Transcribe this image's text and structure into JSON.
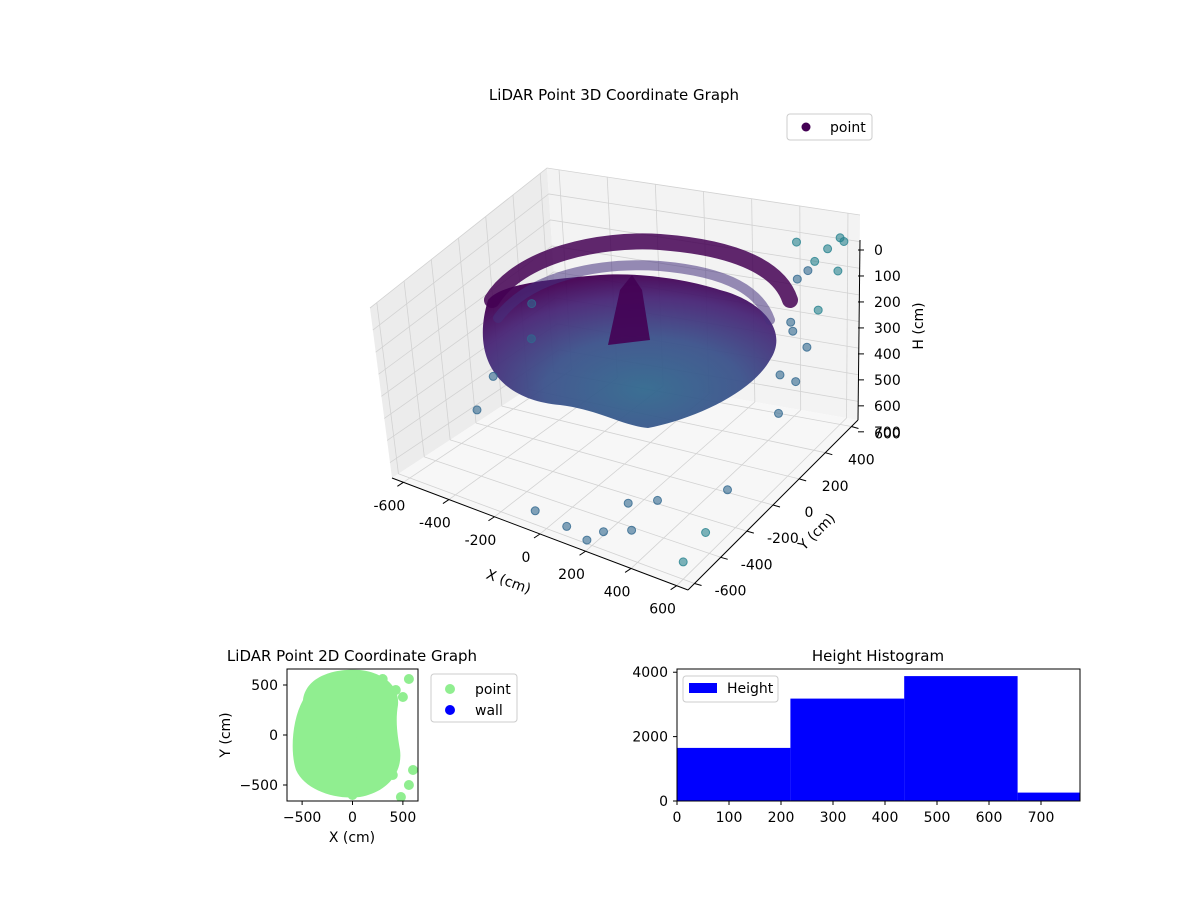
{
  "chart_data": [
    {
      "id": "scatter3d",
      "type": "scatter",
      "title": "LiDAR Point 3D Coordinate Graph",
      "xlabel": "X (cm)",
      "ylabel": "Y (cm)",
      "zlabel": "H (cm)",
      "xlim": [
        -650,
        650
      ],
      "ylim": [
        -650,
        650
      ],
      "zlim": [
        0,
        770
      ],
      "z_inverted": true,
      "x_ticks": [
        "-600",
        "-400",
        "-200",
        "0",
        "200",
        "400",
        "600"
      ],
      "x_tick_values": [
        -600,
        -400,
        -200,
        0,
        200,
        400,
        600
      ],
      "y_ticks": [
        "-600",
        "-400",
        "-200",
        "0",
        "200",
        "400",
        "600"
      ],
      "y_tick_values": [
        -600,
        -400,
        -200,
        0,
        200,
        400,
        600
      ],
      "z_ticks": [
        "0",
        "100",
        "200",
        "300",
        "400",
        "500",
        "600",
        "700"
      ],
      "z_tick_values": [
        0,
        100,
        200,
        300,
        400,
        500,
        600,
        700
      ],
      "grid": true,
      "legend": {
        "placement": "upper-right",
        "entries": [
          {
            "label": "point",
            "color": "#440154"
          }
        ]
      },
      "colormap": "viridis",
      "series": [
        {
          "name": "point",
          "points": [
            [
              -520,
              180,
              600
            ],
            [
              -560,
              -40,
              650
            ],
            [
              -480,
              -300,
              620
            ],
            [
              -600,
              320,
              560
            ],
            [
              520,
              480,
              120
            ],
            [
              560,
              560,
              60
            ],
            [
              600,
              420,
              220
            ],
            [
              480,
              600,
              160
            ],
            [
              620,
              300,
              300
            ],
            [
              560,
              200,
              380
            ],
            [
              600,
              120,
              480
            ],
            [
              520,
              350,
              260
            ],
            [
              640,
              500,
              90
            ],
            [
              580,
              620,
              40
            ],
            [
              450,
              520,
              200
            ],
            [
              400,
              600,
              110
            ],
            [
              620,
              580,
              20
            ],
            [
              500,
              400,
              330
            ],
            [
              600,
              250,
              420
            ],
            [
              300,
              -500,
              620
            ],
            [
              350,
              -560,
              680
            ],
            [
              250,
              -600,
              700
            ],
            [
              400,
              -450,
              600
            ],
            [
              620,
              -300,
              560
            ],
            [
              640,
              -500,
              620
            ],
            [
              600,
              -600,
              700
            ],
            [
              100,
              -620,
              720
            ],
            [
              200,
              -640,
              730
            ],
            [
              -50,
              -600,
              720
            ]
          ]
        }
      ]
    },
    {
      "id": "scatter2d",
      "type": "scatter",
      "title": "LiDAR Point 2D Coordinate Graph",
      "xlabel": "X (cm)",
      "ylabel": "Y (cm)",
      "xlim": [
        -650,
        650
      ],
      "ylim": [
        -660,
        660
      ],
      "x_ticks": [
        "−500",
        "0",
        "500"
      ],
      "x_tick_values": [
        -500,
        0,
        500
      ],
      "y_ticks": [
        "500",
        "0",
        "−500"
      ],
      "y_tick_values": [
        500,
        0,
        -500
      ],
      "legend": {
        "placement": "outside-right",
        "entries": [
          {
            "label": "point",
            "color": "#90ee90"
          },
          {
            "label": "wall",
            "color": "#0000ff"
          }
        ]
      },
      "series": [
        {
          "name": "point",
          "color": "#90ee90",
          "points": [
            [
              -400,
              250
            ],
            [
              -300,
              450
            ],
            [
              -150,
              560
            ],
            [
              0,
              600
            ],
            [
              150,
              580
            ],
            [
              250,
              500
            ],
            [
              -450,
              0
            ],
            [
              -420,
              -250
            ],
            [
              -300,
              -450
            ],
            [
              -150,
              -560
            ],
            [
              0,
              -600
            ],
            [
              150,
              -520
            ],
            [
              300,
              -300
            ],
            [
              330,
              -100
            ],
            [
              300,
              100
            ],
            [
              380,
              300
            ],
            [
              400,
              -400
            ],
            [
              480,
              -620
            ],
            [
              560,
              -500
            ],
            [
              600,
              -350
            ],
            [
              560,
              560
            ],
            [
              430,
              450
            ],
            [
              500,
              380
            ],
            [
              300,
              560
            ],
            [
              -200,
              200
            ],
            [
              0,
              0
            ],
            [
              100,
              -200
            ],
            [
              -100,
              -300
            ],
            [
              200,
              200
            ],
            [
              -300,
              -100
            ]
          ]
        },
        {
          "name": "wall",
          "color": "#0000ff",
          "points": []
        }
      ]
    },
    {
      "id": "histogram",
      "type": "bar",
      "title": "Height Histogram",
      "xlabel": "",
      "ylabel": "",
      "xlim": [
        0,
        775
      ],
      "ylim": [
        0,
        4100
      ],
      "x_ticks": [
        "0",
        "100",
        "200",
        "300",
        "400",
        "500",
        "600",
        "700"
      ],
      "x_tick_values": [
        0,
        100,
        200,
        300,
        400,
        500,
        600,
        700
      ],
      "y_ticks": [
        "0",
        "2000",
        "4000"
      ],
      "y_tick_values": [
        0,
        2000,
        4000
      ],
      "bin_edges": [
        0,
        218,
        437,
        655,
        775
      ],
      "values": [
        1650,
        3180,
        3880,
        260
      ],
      "color": "#0000ff",
      "legend": {
        "placement": "upper-left",
        "entries": [
          {
            "label": "Height",
            "color": "#0000ff"
          }
        ]
      }
    }
  ]
}
